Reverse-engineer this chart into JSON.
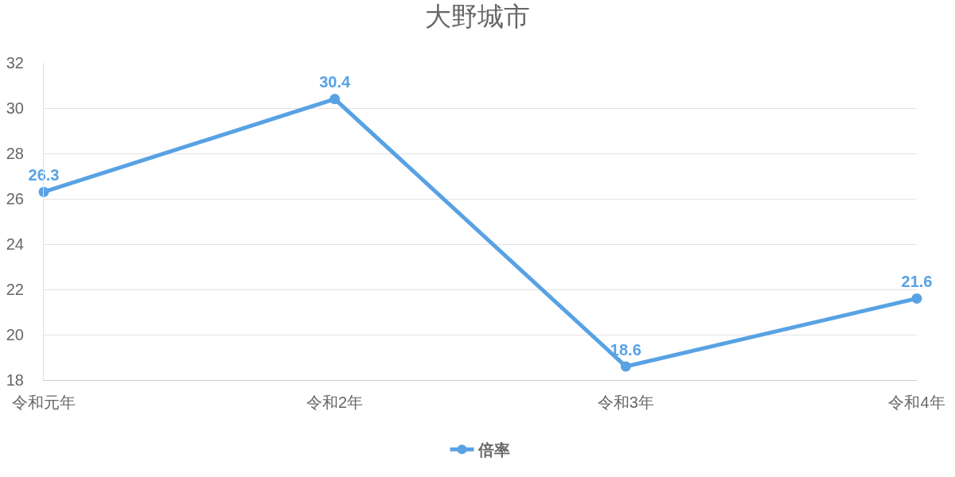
{
  "chart_data": {
    "type": "line",
    "title": "大野城市",
    "categories": [
      "令和元年",
      "令和2年",
      "令和3年",
      "令和4年"
    ],
    "series": [
      {
        "name": "倍率",
        "color": "#58a2e4",
        "values": [
          26.3,
          30.4,
          18.6,
          21.6
        ]
      }
    ],
    "ylim": [
      18,
      32
    ],
    "yticks": [
      18,
      20,
      22,
      24,
      26,
      28,
      30,
      32
    ],
    "grid": "y",
    "legend": "bottom",
    "marker": "circle",
    "line_style": "solid",
    "data_labels": true
  }
}
